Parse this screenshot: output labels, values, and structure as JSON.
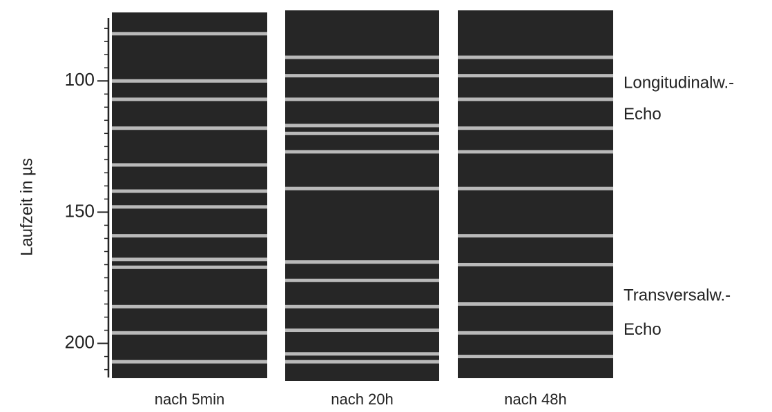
{
  "chart_data": {
    "type": "bands",
    "y_label": "Laufzeit in µs",
    "ylim": [
      76,
      213
    ],
    "yticks": [
      100,
      150,
      200
    ],
    "minor_yticks": [
      80,
      85,
      90,
      95,
      105,
      110,
      115,
      120,
      125,
      130,
      135,
      140,
      145,
      155,
      160,
      165,
      170,
      175,
      180,
      185,
      190,
      195,
      205,
      210
    ],
    "background": "#262626",
    "color": "#d4d4d4",
    "series": [
      {
        "name": "nach 5min",
        "values": [
          82,
          100,
          107,
          118,
          132,
          142,
          148,
          159,
          168,
          171,
          186,
          196,
          207
        ]
      },
      {
        "name": "nach 20h",
        "values": [
          91,
          98,
          107,
          117,
          120,
          127,
          141,
          169,
          176,
          186,
          195,
          204,
          207
        ]
      },
      {
        "name": "nach 48h",
        "values": [
          91,
          98,
          107,
          118,
          127,
          141,
          159,
          170,
          185,
          196,
          205
        ]
      }
    ],
    "annotations": [
      {
        "text": "Longitudinalw.-",
        "y": 101
      },
      {
        "text": "Echo",
        "y": 113
      },
      {
        "text": "Transversalw.-",
        "y": 182
      },
      {
        "text": "Echo",
        "y": 195
      }
    ]
  }
}
